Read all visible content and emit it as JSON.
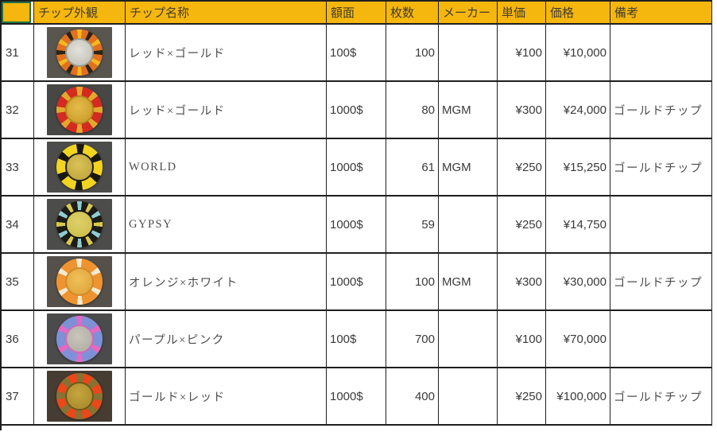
{
  "header": {
    "cells": [
      "",
      "チップ外観",
      "チップ名称",
      "額面",
      "枚数",
      "メーカー",
      "単価",
      "価格",
      "備考"
    ]
  },
  "colors": {
    "header_bg": "#f5b60d",
    "selection_border": "#217346",
    "grid": "#1f1f1f",
    "body_text": "#3a3a3a"
  },
  "rows": [
    {
      "num": "31",
      "name": "レッド×ゴールド",
      "face": "100$",
      "count": "100",
      "maker": "",
      "unit": "¥100",
      "price": "¥10,000",
      "note": "",
      "chip": {
        "photo_bg": "#59564f",
        "edge": "#e2701d",
        "spot": "#f3b81d",
        "spot2": "#2a2417",
        "center": "#c6c5bd",
        "center_hi": "#e2e1da",
        "center_border": "#9a9890"
      }
    },
    {
      "num": "32",
      "name": "レッド×ゴールド",
      "face": "1000$",
      "count": "80",
      "maker": "MGM",
      "unit": "¥300",
      "price": "¥24,000",
      "note": "ゴールドチップ",
      "chip": {
        "photo_bg": "#474745",
        "edge": "#d42a20",
        "spot": "#e2a82e",
        "spot_deg": 16,
        "period": 45,
        "center": "#cfa02e",
        "center_hi": "#e3bc49",
        "center_border": "#b5891f"
      }
    },
    {
      "num": "33",
      "name": "WORLD",
      "face": "1000$",
      "count": "61",
      "maker": "MGM",
      "unit": "¥250",
      "price": "¥15,250",
      "note": "ゴールドチップ",
      "chip": {
        "photo_bg": "#4c4c4a",
        "edge": "#f2d41f",
        "spot": "#181712",
        "spot_deg": 20,
        "period": 60,
        "center": "#c3a93e",
        "center_hi": "#d9c258",
        "center_border": "#23211a"
      }
    },
    {
      "num": "34",
      "name": "GYPSY",
      "face": "1000$",
      "count": "59",
      "maker": "",
      "unit": "¥250",
      "price": "¥14,750",
      "note": "",
      "chip": {
        "photo_bg": "#4c4c4a",
        "edge": "#1c1b16",
        "spot": "#8fccd2",
        "spot2": "#d9c94b",
        "center": "#cfc04c",
        "center_hi": "#ddd06a",
        "center_border": "#15140f"
      }
    },
    {
      "num": "35",
      "name": "オレンジ×ホワイト",
      "face": "1000$",
      "count": "100",
      "maker": "MGM",
      "unit": "¥300",
      "price": "¥30,000",
      "note": "ゴールドチップ",
      "chip": {
        "photo_bg": "#55504a",
        "edge": "#ef9330",
        "spot": "#f6e9ce",
        "spot_deg": 14,
        "period": 60,
        "center": "#e2a83e",
        "center_hi": "#f0c05a",
        "center_border": "#d08a28"
      }
    },
    {
      "num": "36",
      "name": "パープル×ピンク",
      "face": "100$",
      "count": "700",
      "maker": "",
      "unit": "¥100",
      "price": "¥70,000",
      "note": "",
      "chip": {
        "photo_bg": "#4b4b4c",
        "edge": "#7e90d6",
        "spot": "#e668c4",
        "spot_deg": 16,
        "period": 60,
        "center": "#b3b0a6",
        "center_hi": "#c9c6bc",
        "center_border": "#d668b8"
      }
    },
    {
      "num": "37",
      "name": "ゴールド×レッド",
      "face": "1000$",
      "count": "400",
      "maker": "",
      "unit": "¥250",
      "price": "¥100,000",
      "note": "ゴールドチップ",
      "chip": {
        "photo_bg": "#463c31",
        "edge": "#e8481a",
        "spot": "#887231",
        "spot_deg": 20,
        "period": 45,
        "center": "#ad8c2e",
        "center_hi": "#c6a63e",
        "center_border": "#6b5a1e"
      }
    }
  ]
}
